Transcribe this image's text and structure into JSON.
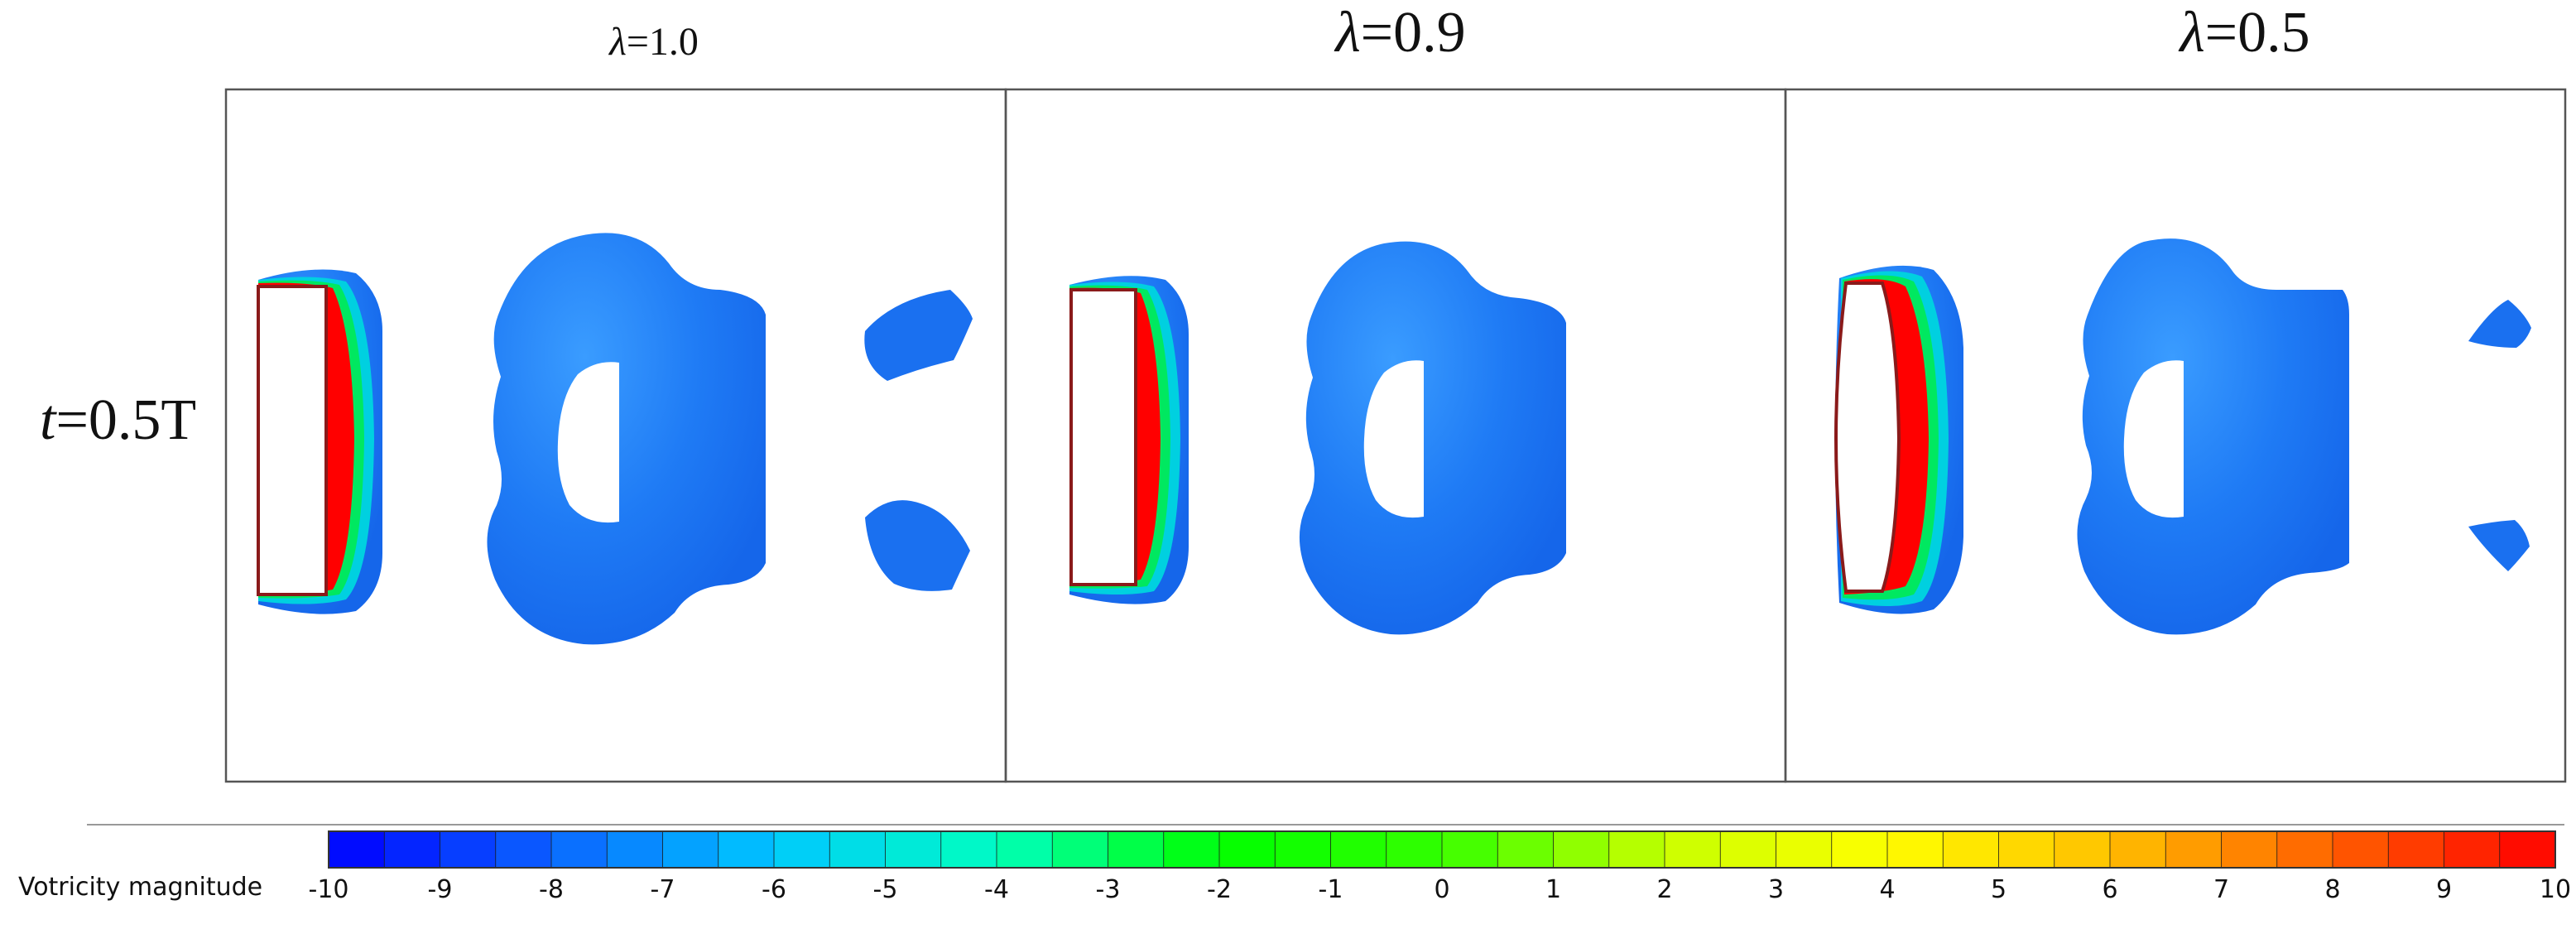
{
  "panels": [
    {
      "lambda_value": "=1.0"
    },
    {
      "lambda_value": "=0.9"
    },
    {
      "lambda_value": "=0.5"
    }
  ],
  "lambda_symbol": "λ",
  "row_label": {
    "var": "t",
    "rest": "=0.5T"
  },
  "colorbar": {
    "title": "Votricity magnitude",
    "min": -10,
    "max": 10,
    "levels": 40,
    "ticks": [
      "-10",
      "-9",
      "-8",
      "-7",
      "-6",
      "-5",
      "-4",
      "-3",
      "-2",
      "-1",
      "0",
      "1",
      "2",
      "3",
      "4",
      "5",
      "6",
      "7",
      "8",
      "9",
      "10"
    ],
    "colors": [
      "#0000ff",
      "#0b63ff",
      "#00c8ff",
      "#00ffc0",
      "#00ff00",
      "#33ff00",
      "#c8ff00",
      "#ffff00",
      "#ffc000",
      "#ff6000",
      "#ff0000"
    ]
  }
}
